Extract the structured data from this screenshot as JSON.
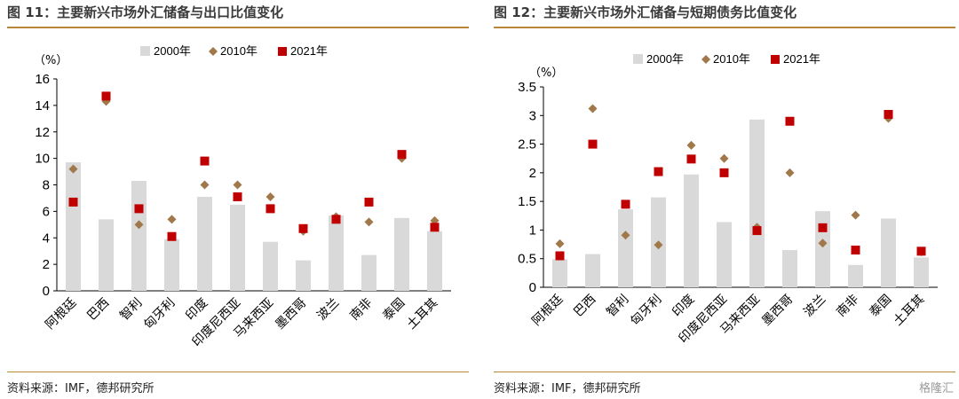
{
  "charts": [
    {
      "title": "图 11：主要新兴市场外汇储备与出口比值变化",
      "source": "资料来源：IMF，德邦研究所"
    },
    {
      "title": "图 12：主要新兴市场外汇储备与短期债务比值变化",
      "source": "资料来源：IMF，德邦研究所"
    }
  ],
  "colors": {
    "bar2000": "#d9d9d9",
    "d2010": "#a0784a",
    "s2021": "#c00000",
    "accent": "#b8863b"
  },
  "watermark": "格隆汇",
  "chart_data": [
    {
      "type": "bar",
      "title": "图 11：主要新兴市场外汇储备与出口比值变化",
      "ylabel": "（%）",
      "ylim": [
        0,
        16
      ],
      "yticks": [
        0,
        2,
        4,
        6,
        8,
        10,
        12,
        14,
        16
      ],
      "categories": [
        "阿根廷",
        "巴西",
        "智利",
        "匈牙利",
        "印度",
        "印度尼西亚",
        "马来西亚",
        "墨西哥",
        "波兰",
        "南非",
        "泰国",
        "土耳其"
      ],
      "legend": [
        "2000年",
        "2010年",
        "2021年"
      ],
      "series": [
        {
          "name": "2000年",
          "type": "bar",
          "values": [
            9.7,
            5.4,
            8.3,
            3.9,
            7.1,
            6.5,
            3.7,
            2.3,
            5.7,
            2.7,
            5.5,
            4.5
          ]
        },
        {
          "name": "2010年",
          "type": "diamond",
          "values": [
            9.2,
            14.3,
            5.0,
            5.4,
            8.0,
            8.0,
            7.1,
            4.5,
            5.6,
            5.2,
            10.0,
            5.3
          ]
        },
        {
          "name": "2021年",
          "type": "square",
          "values": [
            6.7,
            14.7,
            6.2,
            4.1,
            9.8,
            7.1,
            6.2,
            4.7,
            5.4,
            6.7,
            10.3,
            4.8
          ]
        }
      ]
    },
    {
      "type": "bar",
      "title": "图 12：主要新兴市场外汇储备与短期债务比值变化",
      "ylabel": "（%）",
      "ylim": [
        0,
        3.5
      ],
      "yticks": [
        "0",
        "0.5",
        "1",
        "1.5",
        "2",
        "2.5",
        "3",
        "3.5"
      ],
      "categories": [
        "阿根廷",
        "巴西",
        "智利",
        "匈牙利",
        "印度",
        "印度尼西亚",
        "马来西亚",
        "墨西哥",
        "波兰",
        "南非",
        "泰国",
        "土耳其"
      ],
      "legend": [
        "2000年",
        "2010年",
        "2021年"
      ],
      "series": [
        {
          "name": "2000年",
          "type": "bar",
          "values": [
            0.49,
            0.58,
            1.36,
            1.57,
            1.97,
            1.14,
            2.93,
            0.65,
            1.33,
            0.39,
            1.2,
            0.52
          ]
        },
        {
          "name": "2010年",
          "type": "diamond",
          "values": [
            0.76,
            3.12,
            0.91,
            0.74,
            2.48,
            2.25,
            1.05,
            2.0,
            0.77,
            1.26,
            2.95,
            0.62
          ]
        },
        {
          "name": "2021年",
          "type": "square",
          "values": [
            0.55,
            2.5,
            1.45,
            2.02,
            2.24,
            2.0,
            0.99,
            2.9,
            1.04,
            0.65,
            3.02,
            0.63
          ]
        }
      ]
    }
  ]
}
